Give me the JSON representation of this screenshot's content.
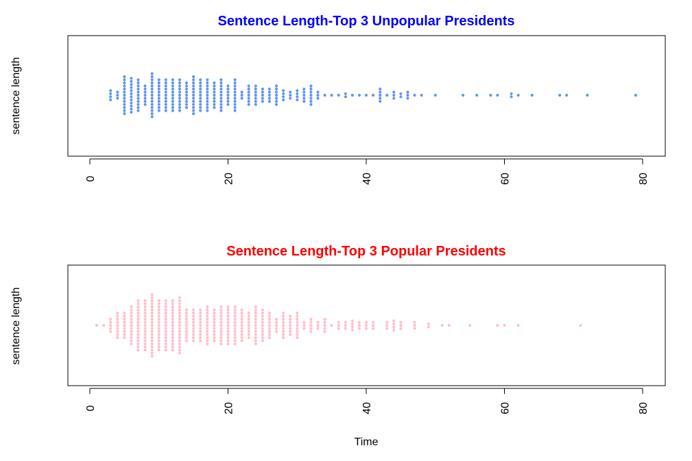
{
  "chart_data": [
    {
      "type": "scatter",
      "subtype": "beeswarm-dotplot",
      "title": "Sentence Length-Top 3 Unpopular Presidents",
      "title_color": "#0000ff",
      "point_color": "#6495ed",
      "ylabel": "sentence length",
      "xlabel": "",
      "xlim": [
        0,
        80
      ],
      "xticks": [
        0,
        20,
        40,
        60,
        80
      ],
      "grid": false,
      "points": [
        {
          "x": 3,
          "count": 4
        },
        {
          "x": 4,
          "count": 3
        },
        {
          "x": 5,
          "count": 13
        },
        {
          "x": 6,
          "count": 12
        },
        {
          "x": 7,
          "count": 11
        },
        {
          "x": 8,
          "count": 7
        },
        {
          "x": 9,
          "count": 15
        },
        {
          "x": 10,
          "count": 11
        },
        {
          "x": 11,
          "count": 11
        },
        {
          "x": 12,
          "count": 11
        },
        {
          "x": 13,
          "count": 11
        },
        {
          "x": 14,
          "count": 9
        },
        {
          "x": 15,
          "count": 13
        },
        {
          "x": 16,
          "count": 11
        },
        {
          "x": 17,
          "count": 11
        },
        {
          "x": 18,
          "count": 9
        },
        {
          "x": 19,
          "count": 11
        },
        {
          "x": 20,
          "count": 7
        },
        {
          "x": 21,
          "count": 11
        },
        {
          "x": 22,
          "count": 3
        },
        {
          "x": 23,
          "count": 7
        },
        {
          "x": 24,
          "count": 7
        },
        {
          "x": 25,
          "count": 5
        },
        {
          "x": 26,
          "count": 5
        },
        {
          "x": 27,
          "count": 7
        },
        {
          "x": 28,
          "count": 4
        },
        {
          "x": 29,
          "count": 3
        },
        {
          "x": 30,
          "count": 4
        },
        {
          "x": 31,
          "count": 5
        },
        {
          "x": 32,
          "count": 7
        },
        {
          "x": 33,
          "count": 3
        },
        {
          "x": 34,
          "count": 1
        },
        {
          "x": 35,
          "count": 1
        },
        {
          "x": 36,
          "count": 1
        },
        {
          "x": 37,
          "count": 2
        },
        {
          "x": 38,
          "count": 1
        },
        {
          "x": 39,
          "count": 1
        },
        {
          "x": 40,
          "count": 1
        },
        {
          "x": 41,
          "count": 1
        },
        {
          "x": 42,
          "count": 5
        },
        {
          "x": 43,
          "count": 1
        },
        {
          "x": 44,
          "count": 3
        },
        {
          "x": 45,
          "count": 2
        },
        {
          "x": 46,
          "count": 3
        },
        {
          "x": 47,
          "count": 1
        },
        {
          "x": 48,
          "count": 1
        },
        {
          "x": 50,
          "count": 1
        },
        {
          "x": 54,
          "count": 1
        },
        {
          "x": 56,
          "count": 1
        },
        {
          "x": 58,
          "count": 1
        },
        {
          "x": 59,
          "count": 1
        },
        {
          "x": 61,
          "count": 2
        },
        {
          "x": 62,
          "count": 1
        },
        {
          "x": 64,
          "count": 1
        },
        {
          "x": 68,
          "count": 1
        },
        {
          "x": 69,
          "count": 1
        },
        {
          "x": 72,
          "count": 1
        },
        {
          "x": 79,
          "count": 1
        }
      ]
    },
    {
      "type": "scatter",
      "subtype": "beeswarm-dotplot",
      "title": "Sentence Length-Top 3 Popular Presidents",
      "title_color": "#ff0000",
      "point_color": "#ffc0cb",
      "ylabel": "sentence length",
      "xlabel": "Time",
      "xlim": [
        0,
        80
      ],
      "xticks": [
        0,
        20,
        40,
        60,
        80
      ],
      "grid": false,
      "points": [
        {
          "x": 1,
          "count": 1
        },
        {
          "x": 2,
          "count": 1
        },
        {
          "x": 3,
          "count": 5
        },
        {
          "x": 4,
          "count": 9
        },
        {
          "x": 5,
          "count": 9
        },
        {
          "x": 6,
          "count": 13
        },
        {
          "x": 7,
          "count": 17
        },
        {
          "x": 8,
          "count": 17
        },
        {
          "x": 9,
          "count": 21
        },
        {
          "x": 10,
          "count": 17
        },
        {
          "x": 11,
          "count": 17
        },
        {
          "x": 12,
          "count": 17
        },
        {
          "x": 13,
          "count": 19
        },
        {
          "x": 14,
          "count": 11
        },
        {
          "x": 15,
          "count": 11
        },
        {
          "x": 16,
          "count": 11
        },
        {
          "x": 17,
          "count": 13
        },
        {
          "x": 18,
          "count": 11
        },
        {
          "x": 19,
          "count": 13
        },
        {
          "x": 20,
          "count": 13
        },
        {
          "x": 21,
          "count": 13
        },
        {
          "x": 22,
          "count": 11
        },
        {
          "x": 23,
          "count": 9
        },
        {
          "x": 24,
          "count": 13
        },
        {
          "x": 25,
          "count": 11
        },
        {
          "x": 26,
          "count": 9
        },
        {
          "x": 27,
          "count": 5
        },
        {
          "x": 28,
          "count": 9
        },
        {
          "x": 29,
          "count": 7
        },
        {
          "x": 30,
          "count": 9
        },
        {
          "x": 31,
          "count": 3
        },
        {
          "x": 32,
          "count": 5
        },
        {
          "x": 33,
          "count": 3
        },
        {
          "x": 34,
          "count": 5
        },
        {
          "x": 35,
          "count": 1
        },
        {
          "x": 36,
          "count": 3
        },
        {
          "x": 37,
          "count": 3
        },
        {
          "x": 38,
          "count": 4
        },
        {
          "x": 39,
          "count": 3
        },
        {
          "x": 40,
          "count": 3
        },
        {
          "x": 41,
          "count": 3
        },
        {
          "x": 43,
          "count": 3
        },
        {
          "x": 44,
          "count": 4
        },
        {
          "x": 45,
          "count": 3
        },
        {
          "x": 47,
          "count": 3
        },
        {
          "x": 49,
          "count": 2
        },
        {
          "x": 51,
          "count": 1
        },
        {
          "x": 52,
          "count": 1
        },
        {
          "x": 55,
          "count": 1
        },
        {
          "x": 59,
          "count": 1
        },
        {
          "x": 60,
          "count": 1
        },
        {
          "x": 62,
          "count": 1
        },
        {
          "x": 71,
          "count": 1
        }
      ]
    }
  ]
}
